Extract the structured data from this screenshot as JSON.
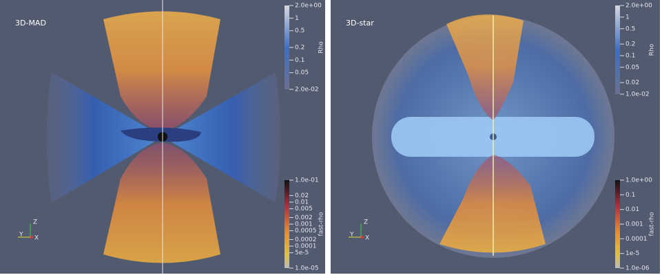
{
  "panels": [
    {
      "label": "3D-MAD",
      "rho": {
        "title": "Rho",
        "ticks": [
          "2.0e+00",
          "1",
          "0.5",
          "0.2",
          "0.1",
          "0.05",
          "2.0e-02"
        ]
      },
      "fast_rho": {
        "title": "fast-rho",
        "ticks": [
          "1.0e-01",
          "0.02",
          "0.01",
          "0.005",
          "0.002",
          "0.001",
          "0.0005",
          "0.0002",
          "0.0001",
          "5e-5",
          "1.0e-05"
        ]
      },
      "axes": {
        "x": "X",
        "y": "Y",
        "z": "Z"
      }
    },
    {
      "label": "3D-star",
      "rho": {
        "title": "Rho",
        "ticks": [
          "2.0e+00",
          "1",
          "0.5",
          "0.2",
          "0.1",
          "0.05",
          "0.02",
          "1.0e-02"
        ]
      },
      "fast_rho": {
        "title": "fast-rho",
        "ticks": [
          "1.0e+00",
          "0.1",
          "0.01",
          "0.001",
          "0.0001",
          "1e-5",
          "1.0e-06"
        ]
      },
      "axes": {
        "x": "X",
        "y": "Y",
        "z": "Z"
      }
    }
  ]
}
